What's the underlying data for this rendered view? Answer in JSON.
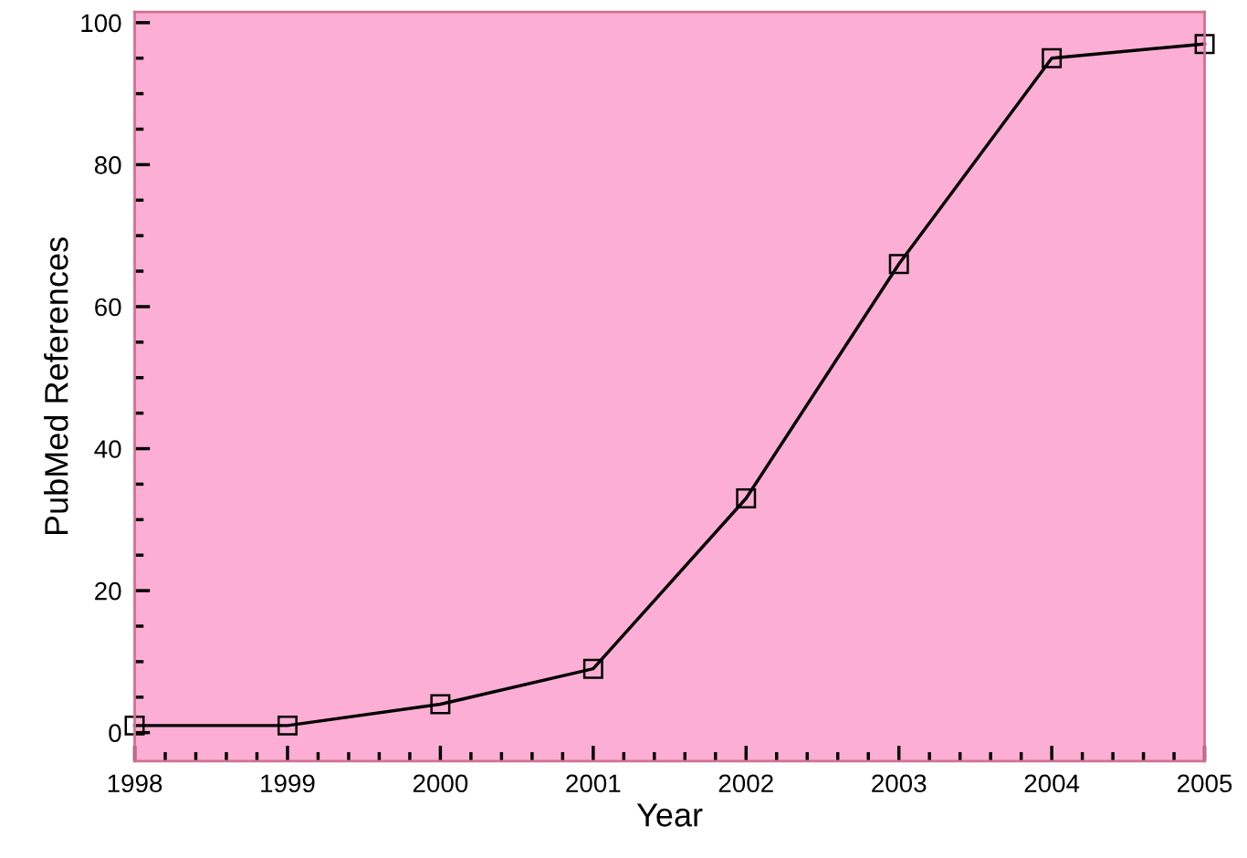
{
  "chart_data": {
    "type": "line",
    "xlabel": "Year",
    "ylabel": "PubMed References",
    "x": [
      1998,
      1999,
      2000,
      2001,
      2002,
      2003,
      2004,
      2005
    ],
    "series": [
      {
        "color": "#000000",
        "values": [
          1,
          1,
          4,
          9,
          33,
          66,
          95,
          97
        ]
      }
    ],
    "xlim": [
      1998,
      2005
    ],
    "xticks": [
      1998,
      1999,
      2000,
      2001,
      2002,
      2003,
      2004,
      2005
    ],
    "ylim": [
      -4,
      101.5
    ],
    "yticks": [
      0,
      20,
      40,
      60,
      80,
      100
    ],
    "marker": "square",
    "line_style": "solid",
    "grid": false,
    "legend": false
  }
}
